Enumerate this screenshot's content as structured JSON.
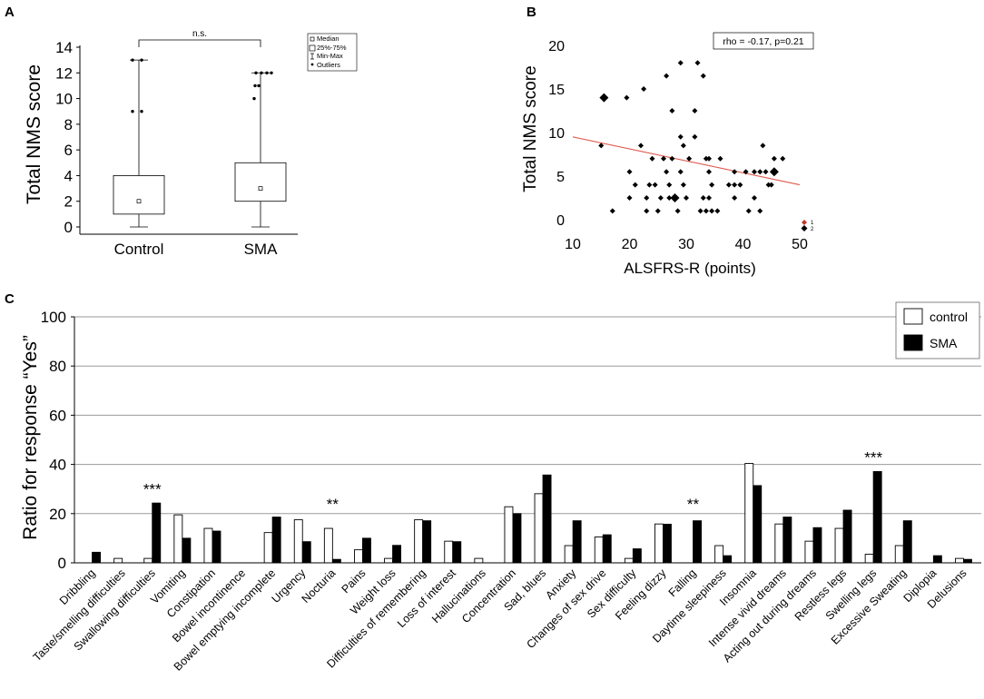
{
  "chart_data": [
    {
      "panel": "A",
      "type": "box",
      "ylabel": "Total NMS score",
      "ylim": [
        0,
        14
      ],
      "yticks": [
        0,
        2,
        4,
        6,
        8,
        10,
        12,
        14
      ],
      "categories": [
        "Control",
        "SMA"
      ],
      "boxes": [
        {
          "name": "Control",
          "min": 0,
          "q1": 1,
          "median": 2,
          "q3": 4,
          "max": 13,
          "outliers": [
            13,
            13,
            9,
            9
          ]
        },
        {
          "name": "SMA",
          "min": 0,
          "q1": 2,
          "median": 3,
          "q3": 5,
          "max": 12,
          "outliers": [
            12,
            12,
            12,
            12,
            11,
            11,
            10
          ]
        }
      ],
      "significance": "n.s.",
      "legend": [
        "Median",
        "25%-75%",
        "Min-Max",
        "Outliers"
      ]
    },
    {
      "panel": "B",
      "type": "scatter",
      "xlabel": "ALSFRS-R (points)",
      "ylabel": "Total NMS score",
      "xlim": [
        10,
        50
      ],
      "ylim": [
        0,
        20
      ],
      "xticks": [
        10,
        20,
        30,
        40,
        50
      ],
      "yticks": [
        0,
        5,
        10,
        15,
        20
      ],
      "annotation": "rho = -0.17, p=0.21",
      "trend": {
        "x": [
          10,
          50
        ],
        "y": [
          9.5,
          4.0
        ]
      },
      "legend_marks": [
        "1",
        "2"
      ],
      "points": [
        {
          "x": 15,
          "y": 8.5,
          "s": 1
        },
        {
          "x": 15.5,
          "y": 14,
          "s": 2
        },
        {
          "x": 17,
          "y": 1,
          "s": 1
        },
        {
          "x": 19.5,
          "y": 14,
          "s": 1
        },
        {
          "x": 20,
          "y": 5.5,
          "s": 1
        },
        {
          "x": 20,
          "y": 2.5,
          "s": 1
        },
        {
          "x": 21,
          "y": 4,
          "s": 1
        },
        {
          "x": 22,
          "y": 8.5,
          "s": 1
        },
        {
          "x": 22.5,
          "y": 15,
          "s": 1
        },
        {
          "x": 23,
          "y": 1,
          "s": 1
        },
        {
          "x": 23,
          "y": 2.5,
          "s": 1
        },
        {
          "x": 23.5,
          "y": 4,
          "s": 1
        },
        {
          "x": 24,
          "y": 7,
          "s": 1
        },
        {
          "x": 24.5,
          "y": 4,
          "s": 1
        },
        {
          "x": 25,
          "y": 1,
          "s": 1
        },
        {
          "x": 25.5,
          "y": 2.5,
          "s": 1
        },
        {
          "x": 26,
          "y": 7,
          "s": 1
        },
        {
          "x": 26.5,
          "y": 5.5,
          "s": 1
        },
        {
          "x": 26.5,
          "y": 16.5,
          "s": 1
        },
        {
          "x": 27,
          "y": 2.5,
          "s": 1
        },
        {
          "x": 27,
          "y": 4,
          "s": 1
        },
        {
          "x": 27.5,
          "y": 12.5,
          "s": 1
        },
        {
          "x": 27.5,
          "y": 7,
          "s": 1
        },
        {
          "x": 28,
          "y": 2.5,
          "s": 2
        },
        {
          "x": 28.5,
          "y": 1,
          "s": 1
        },
        {
          "x": 29,
          "y": 5.5,
          "s": 1
        },
        {
          "x": 29,
          "y": 9.5,
          "s": 1
        },
        {
          "x": 29,
          "y": 18,
          "s": 1
        },
        {
          "x": 29.5,
          "y": 4,
          "s": 1
        },
        {
          "x": 29.5,
          "y": 8.5,
          "s": 1
        },
        {
          "x": 30,
          "y": 2.5,
          "s": 1
        },
        {
          "x": 30.5,
          "y": 7,
          "s": 1
        },
        {
          "x": 31.5,
          "y": 12.5,
          "s": 1
        },
        {
          "x": 31.5,
          "y": 9.5,
          "s": 1
        },
        {
          "x": 32,
          "y": 18,
          "s": 1
        },
        {
          "x": 32.5,
          "y": 1,
          "s": 1
        },
        {
          "x": 33,
          "y": 2.5,
          "s": 1
        },
        {
          "x": 33,
          "y": 16.5,
          "s": 1
        },
        {
          "x": 33.5,
          "y": 7,
          "s": 1
        },
        {
          "x": 33.5,
          "y": 1,
          "s": 1
        },
        {
          "x": 34,
          "y": 5.5,
          "s": 1
        },
        {
          "x": 34,
          "y": 7,
          "s": 1
        },
        {
          "x": 34,
          "y": 2.5,
          "s": 1
        },
        {
          "x": 34.5,
          "y": 4,
          "s": 1
        },
        {
          "x": 34.5,
          "y": 1,
          "s": 1
        },
        {
          "x": 35.5,
          "y": 1,
          "s": 1
        },
        {
          "x": 36,
          "y": 7,
          "s": 1
        },
        {
          "x": 37.5,
          "y": 4,
          "s": 1
        },
        {
          "x": 38.5,
          "y": 5.5,
          "s": 1
        },
        {
          "x": 38.5,
          "y": 2.5,
          "s": 1
        },
        {
          "x": 38.5,
          "y": 4,
          "s": 1
        },
        {
          "x": 39.5,
          "y": 4,
          "s": 1
        },
        {
          "x": 40.5,
          "y": 5.5,
          "s": 1
        },
        {
          "x": 41,
          "y": 1,
          "s": 1
        },
        {
          "x": 42,
          "y": 5.5,
          "s": 1
        },
        {
          "x": 42,
          "y": 2.5,
          "s": 1
        },
        {
          "x": 43,
          "y": 5.5,
          "s": 1
        },
        {
          "x": 43,
          "y": 1,
          "s": 1
        },
        {
          "x": 43.5,
          "y": 8.5,
          "s": 1
        },
        {
          "x": 44,
          "y": 5.5,
          "s": 1
        },
        {
          "x": 44.5,
          "y": 4,
          "s": 1
        },
        {
          "x": 45,
          "y": 4,
          "s": 1
        },
        {
          "x": 45.5,
          "y": 5.5,
          "s": 2
        },
        {
          "x": 45.5,
          "y": 7,
          "s": 1
        },
        {
          "x": 47,
          "y": 7,
          "s": 1
        }
      ]
    },
    {
      "panel": "C",
      "type": "bar",
      "ylabel": "Ratio for response “Yes”",
      "ylim": [
        0,
        100
      ],
      "yticks": [
        0,
        20,
        40,
        60,
        80,
        100
      ],
      "categories": [
        "Dribbling",
        "Taste/smelling difficulties",
        "Swallowing difficulties",
        "Vomiting",
        "Constipation",
        "Bowel incontinence",
        "Bowel emptying incomplete",
        "Urgency",
        "Nocturia",
        "Pains",
        "Weight loss",
        "Difficulties of remembering",
        "Loss of interest",
        "Hallucinations",
        "Concentration",
        "Sad, blues",
        "Anxiety",
        "Changes of sex drive",
        "Sex difficulty",
        "Feeling dizzy",
        "Falling",
        "Daytime sleepiness",
        "Insomnia",
        "Intense vivid dreams",
        "Acting out during dreams",
        "Restless legs",
        "Swelling legs",
        "Excessive Sweating",
        "Diplopia",
        "Delusions"
      ],
      "series": [
        {
          "name": "control",
          "color": "#ffffff",
          "values": [
            0,
            1.8,
            1.8,
            19.5,
            14,
            0,
            12.3,
            17.5,
            14,
            5.3,
            1.8,
            17.5,
            8.8,
            1.8,
            22.8,
            28.1,
            7,
            10.5,
            1.8,
            15.8,
            0,
            7,
            40.4,
            15.8,
            8.8,
            14,
            3.5,
            7,
            0,
            1.8
          ]
        },
        {
          "name": "SMA",
          "color": "#000000",
          "values": [
            4.3,
            0,
            24.3,
            10,
            12.9,
            0,
            18.6,
            8.6,
            1.4,
            10,
            7.1,
            17.1,
            8.6,
            0,
            20,
            35.7,
            17.1,
            11.4,
            5.7,
            15.7,
            17.1,
            2.9,
            31.4,
            18.6,
            14.3,
            21.4,
            37.1,
            17.1,
            2.9,
            1.4
          ]
        }
      ],
      "annotations": [
        {
          "category": "Swallowing difficulties",
          "text": "***",
          "y": 30
        },
        {
          "category": "Nocturia",
          "text": "**",
          "y": 24
        },
        {
          "category": "Falling",
          "text": "**",
          "y": 24
        },
        {
          "category": "Swelling legs",
          "text": "***",
          "y": 43
        }
      ],
      "legend": [
        "control",
        "SMA"
      ]
    }
  ],
  "panels": {
    "a": {
      "letter": "A",
      "ylabel": "Total NMS score",
      "sig": "n.s.",
      "x1": "Control",
      "x2": "SMA",
      "legend_median": "Median",
      "legend_iqr": "25%-75%",
      "legend_minmax": "Min-Max",
      "legend_outliers": "Outliers"
    },
    "b": {
      "letter": "B",
      "ylabel": "Total NMS score",
      "xlabel": "ALSFRS-R (points)",
      "annotation": "rho = -0.17, p=0.21",
      "mark1": "1",
      "mark2": "2"
    },
    "c": {
      "letter": "C",
      "ylabel": "Ratio for response “Yes”",
      "legend_control": "control",
      "legend_sma": "SMA"
    }
  }
}
